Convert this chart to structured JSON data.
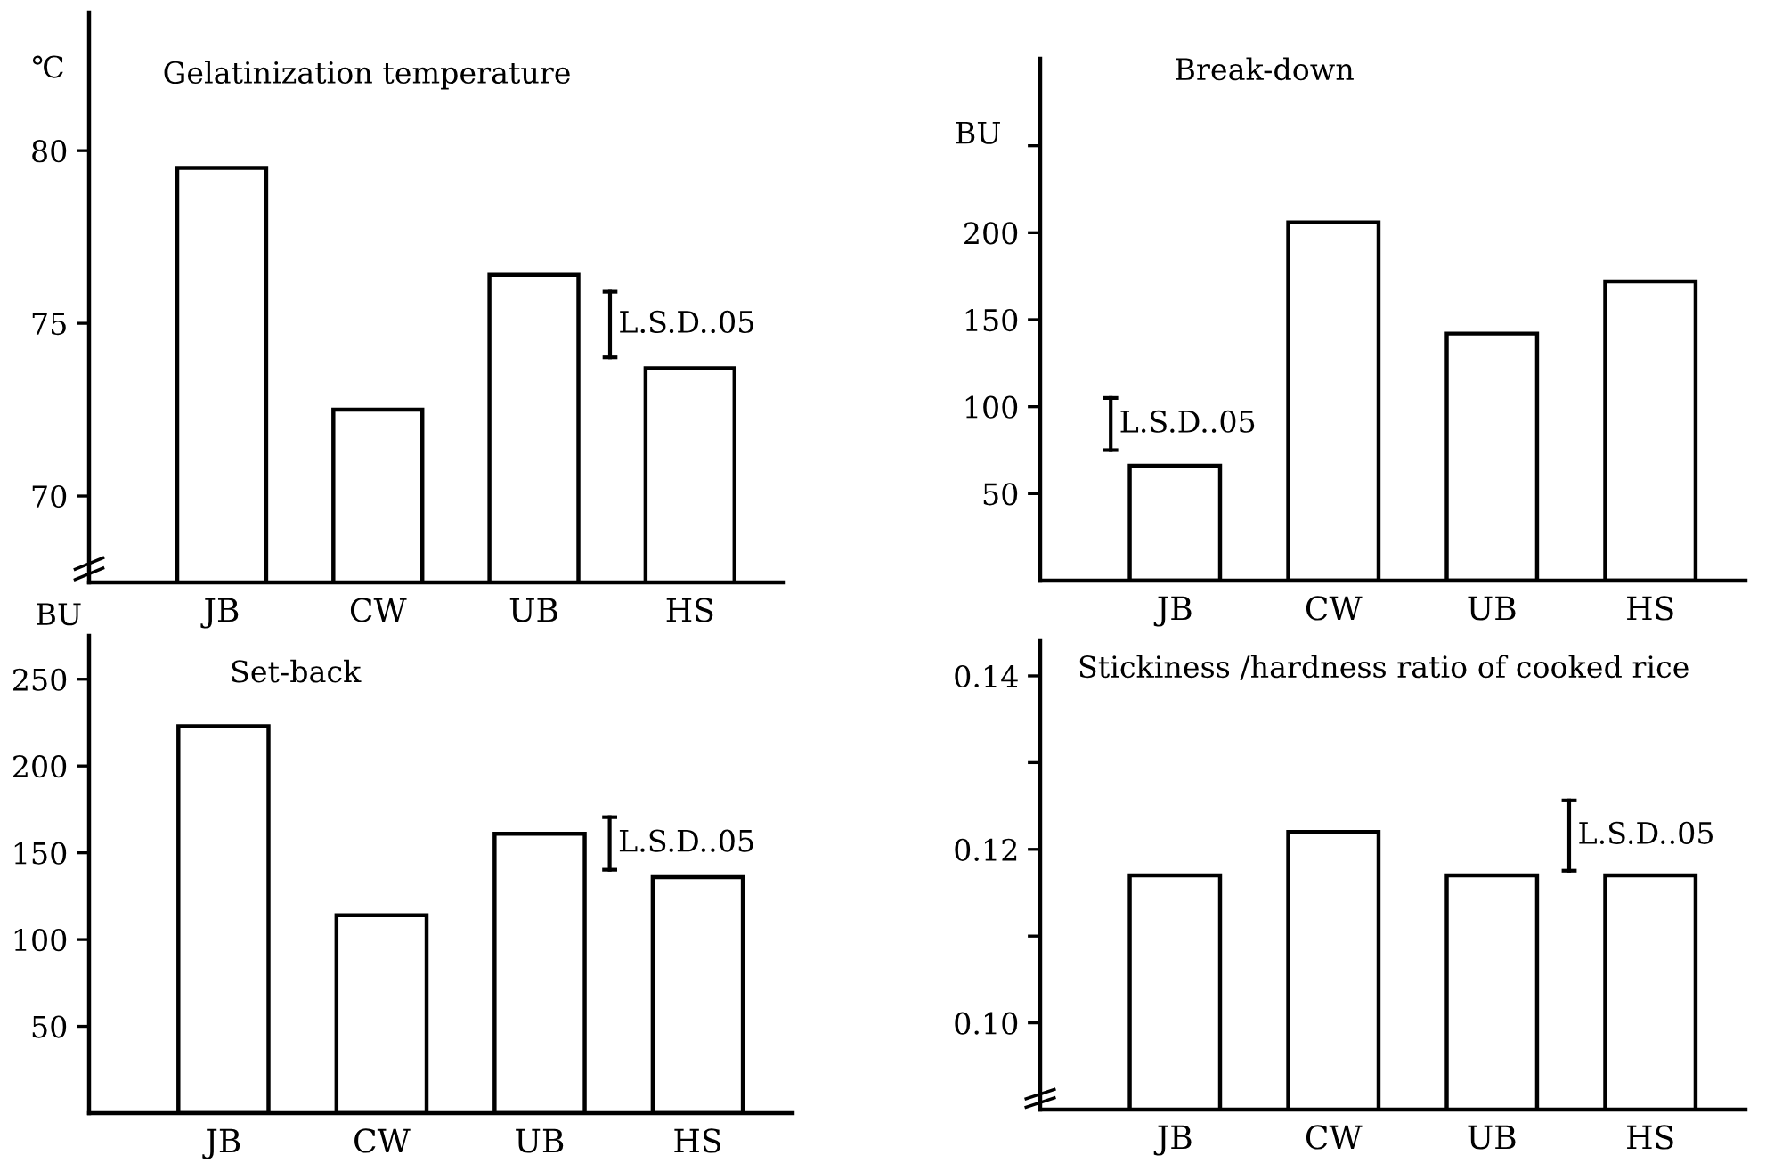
{
  "chart_data": [
    {
      "type": "bar",
      "title": "Gelatinization temperature",
      "ylabel": "℃",
      "categories": [
        "JB",
        "CW",
        "UB",
        "HS"
      ],
      "values": [
        79.5,
        72.5,
        76.4,
        73.7
      ],
      "color": "#ffffff",
      "ylim": [
        67.5,
        84
      ],
      "yticks": [
        70,
        75,
        80
      ],
      "annotations": [
        "L.S.D..05"
      ],
      "grid": false,
      "legend": false
    },
    {
      "type": "bar",
      "title": "Break-down",
      "ylabel": "BU",
      "categories": [
        "JB",
        "CW",
        "UB",
        "HS"
      ],
      "values": [
        66,
        206,
        142,
        172
      ],
      "color": "#ffffff",
      "ylim": [
        0,
        300
      ],
      "yticks": [
        50,
        100,
        150,
        200,
        {
          "value": 250,
          "label": null
        }
      ],
      "annotations": [
        "L.S.D..05"
      ],
      "grid": false,
      "legend": false
    },
    {
      "type": "bar",
      "title": "Set-back",
      "ylabel": "BU",
      "categories": [
        "JB",
        "CW",
        "UB",
        "HS"
      ],
      "values": [
        223,
        114,
        161,
        136
      ],
      "color": "#ffffff",
      "ylim": [
        0,
        275
      ],
      "yticks": [
        50,
        100,
        150,
        200,
        250
      ],
      "annotations": [
        "L.S.D..05"
      ],
      "grid": false,
      "legend": false
    },
    {
      "type": "bar",
      "title": "Stickiness /hardness ratio of cooked rice",
      "categories": [
        "JB",
        "CW",
        "UB",
        "HS"
      ],
      "values": [
        0.117,
        0.122,
        0.117,
        0.117
      ],
      "color": "#ffffff",
      "ylim": [
        0.09,
        0.144
      ],
      "yticks": [
        {
          "value": 0.1,
          "label": "0.10"
        },
        {
          "value": 0.11,
          "label": null
        },
        {
          "value": 0.12,
          "label": "0.12"
        },
        {
          "value": 0.13,
          "label": null
        },
        {
          "value": 0.14,
          "label": "0.14"
        }
      ],
      "annotations": [
        "L.S.D..05"
      ],
      "grid": false,
      "legend": false
    }
  ]
}
